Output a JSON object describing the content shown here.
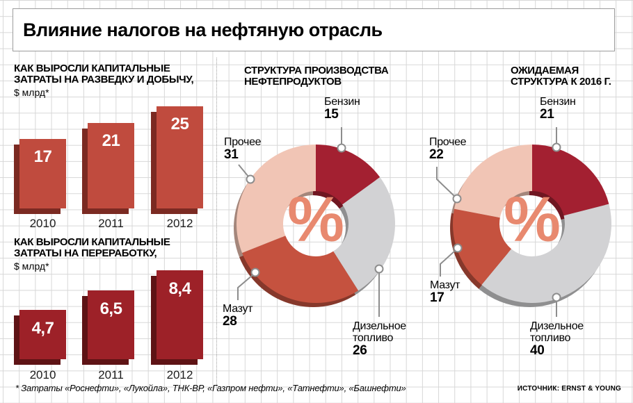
{
  "title": "Влияние налогов на нефтяную отрасль",
  "footnote": "* Затраты «Роснефти», «Лукойла», ТНК-ВР, «Газпром нефти», «Татнефти», «Башнефти»",
  "source": "ИСТОЧНИК: ERNST & YOUNG",
  "palette": {
    "bar_upstream": "#c04b3e",
    "bar_upstream_shadow": "#7b2a22",
    "bar_refining": "#9d2128",
    "bar_refining_shadow": "#5e1315",
    "donut_gasoline": "#a32031",
    "donut_diesel": "#d2d2d4",
    "donut_fuel_oil": "#c5523f",
    "donut_other": "#f1c5b5",
    "percent_sign": "#e8896f",
    "callout": "#8d8d8d"
  },
  "chart_data": [
    {
      "type": "bar",
      "title_lines": [
        "КАК ВЫРОСЛИ КАПИТАЛЬНЫЕ",
        "ЗАТРАТЫ НА РАЗВЕДКУ И ДОБЫЧУ,"
      ],
      "unit": "$ млрд*",
      "categories": [
        "2010",
        "2011",
        "2012"
      ],
      "values": [
        17,
        21,
        25
      ],
      "value_labels": [
        "17",
        "21",
        "25"
      ]
    },
    {
      "type": "bar",
      "title_lines": [
        "КАК ВЫРОСЛИ КАПИТАЛЬНЫЕ",
        "ЗАТРАТЫ НА ПЕРЕРАБОТКУ,"
      ],
      "unit": "$ млрд*",
      "categories": [
        "2010",
        "2011",
        "2012"
      ],
      "values": [
        4.7,
        6.5,
        8.4
      ],
      "value_labels": [
        "4,7",
        "6,5",
        "8,4"
      ]
    },
    {
      "type": "donut",
      "title_lines": [
        "СТРУКТУРА ПРОИЗВОДСТВА",
        "НЕФТЕПРОДУКТОВ"
      ],
      "center_label": "%",
      "segments": [
        {
          "id": "gasoline",
          "label": "Бензин",
          "value": 15
        },
        {
          "id": "diesel",
          "label": "Дизельное топливо",
          "value": 26
        },
        {
          "id": "fuel-oil",
          "label": "Мазут",
          "value": 28
        },
        {
          "id": "other",
          "label": "Прочее",
          "value": 31
        }
      ]
    },
    {
      "type": "donut",
      "title_lines": [
        "ОЖИДАЕМАЯ",
        "СТРУКТУРА К 2016 Г."
      ],
      "center_label": "%",
      "segments": [
        {
          "id": "gasoline",
          "label": "Бензин",
          "value": 21
        },
        {
          "id": "diesel",
          "label": "Дизельное топливо",
          "value": 40
        },
        {
          "id": "fuel-oil",
          "label": "Мазут",
          "value": 17
        },
        {
          "id": "other",
          "label": "Прочее",
          "value": 22
        }
      ]
    }
  ]
}
